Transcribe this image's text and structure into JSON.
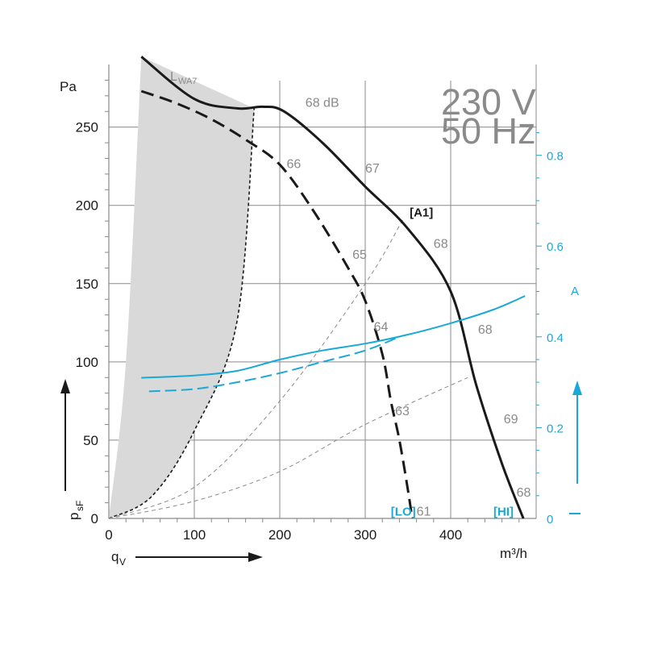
{
  "header": {
    "voltage": "230 V",
    "frequency": "50 Hz"
  },
  "axes": {
    "y_unit": "Pa",
    "x_unit": "m³/h",
    "y_symbol": "p",
    "y_symbol_sub": "sF",
    "x_symbol": "q",
    "x_symbol_sub": "V",
    "right_unit": "A",
    "lwa_main": "L",
    "lwa_sub": "WA7"
  },
  "colors": {
    "black": "#1a1a1a",
    "current": "#1aa9d6",
    "grid": "#8a8a8a",
    "shade": "#d9d9d9",
    "label_grey": "#8a8a8a"
  },
  "chart_data": {
    "type": "line",
    "x_axis": {
      "label": "m³/h",
      "range": [
        0,
        500
      ],
      "ticks": [
        0,
        100,
        200,
        300,
        400
      ]
    },
    "y_axis_left": {
      "label": "Pa",
      "range": [
        0,
        290
      ],
      "ticks": [
        0,
        50,
        100,
        150,
        200,
        250
      ]
    },
    "y_axis_right": {
      "label": "A",
      "range": [
        0,
        1.0
      ],
      "ticks": [
        "0",
        "0.2",
        "0.4",
        "0.6",
        "0.8"
      ]
    },
    "grid": true,
    "series": [
      {
        "name": "[HI]",
        "axis": "left",
        "style": "solid",
        "color": "#1a1a1a",
        "x": [
          38,
          100,
          150,
          180,
          205,
          250,
          300,
          350,
          400,
          430,
          460,
          485
        ],
        "y": [
          295,
          268,
          262,
          263,
          260,
          240,
          212,
          185,
          145,
          85,
          35,
          0
        ]
      },
      {
        "name": "[LO]",
        "axis": "left",
        "style": "dashed",
        "color": "#1a1a1a",
        "x": [
          38,
          80,
          120,
          160,
          200,
          240,
          280,
          300,
          320,
          330,
          340,
          350,
          355
        ],
        "y": [
          273,
          265,
          255,
          242,
          226,
          196,
          160,
          139,
          105,
          75,
          50,
          18,
          0
        ]
      },
      {
        "name": "[HI]",
        "axis": "right",
        "style": "solid",
        "color": "#1aa9d6",
        "x": [
          38,
          100,
          150,
          200,
          250,
          300,
          350,
          400,
          450,
          487
        ],
        "y": [
          0.31,
          0.315,
          0.325,
          0.35,
          0.37,
          0.385,
          0.405,
          0.43,
          0.46,
          0.49
        ]
      },
      {
        "name": "[LO]",
        "axis": "right",
        "style": "dashed",
        "color": "#1aa9d6",
        "x": [
          47,
          100,
          150,
          200,
          250,
          300,
          340
        ],
        "y": [
          0.28,
          0.285,
          0.3,
          0.32,
          0.345,
          0.37,
          0.4
        ]
      }
    ],
    "system_curves": [
      {
        "style": "dashed",
        "x": [
          0,
          50,
          100,
          150,
          170
        ],
        "y": [
          0,
          14,
          56,
          126,
          262
        ]
      },
      {
        "style": "dashed",
        "x": [
          0,
          100,
          200,
          300,
          345
        ],
        "y": [
          0,
          20,
          75,
          150,
          192
        ]
      },
      {
        "style": "dashed",
        "x": [
          0,
          100,
          200,
          300,
          420
        ],
        "y": [
          0,
          11,
          30,
          60,
          90
        ]
      }
    ],
    "shaded_region": {
      "x_left": [
        38,
        20,
        0
      ],
      "y_left": [
        295,
        100,
        0
      ],
      "x_right": [
        0,
        50,
        100,
        150,
        170
      ],
      "y_right": [
        0,
        14,
        56,
        126,
        262
      ]
    },
    "annotations": [
      {
        "text": "68 dB",
        "x": 230,
        "y": 267
      },
      {
        "text": "66",
        "x": 208,
        "y": 228
      },
      {
        "text": "67",
        "x": 300,
        "y": 225
      },
      {
        "text": "[A1]",
        "x": 352,
        "y": 197
      },
      {
        "text": "65",
        "x": 285,
        "y": 170
      },
      {
        "text": "68",
        "x": 380,
        "y": 177
      },
      {
        "text": "64",
        "x": 310,
        "y": 124
      },
      {
        "text": "68",
        "x": 432,
        "y": 122
      },
      {
        "text": "63",
        "x": 335,
        "y": 70
      },
      {
        "text": "69",
        "x": 462,
        "y": 65
      },
      {
        "text": "68",
        "x": 477,
        "y": 18
      },
      {
        "text": "61",
        "x": 360,
        "y": 6
      },
      {
        "text": "[LO]",
        "x": 330,
        "y": 6
      },
      {
        "text": "[HI]",
        "x": 450,
        "y": 6
      }
    ]
  }
}
